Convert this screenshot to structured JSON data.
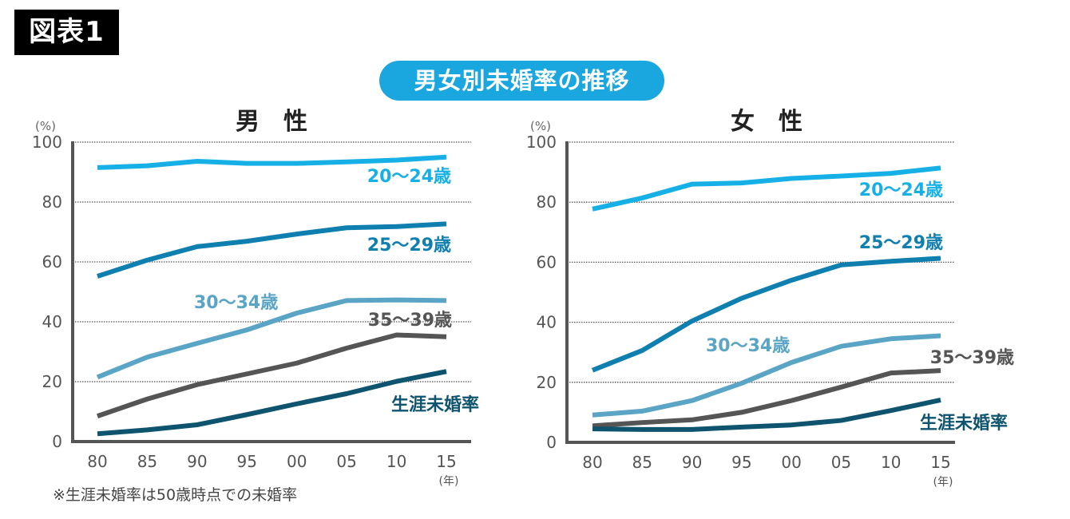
{
  "figure_label": "図表1",
  "main_title": "男女別未婚率の推移",
  "footnote": "※生涯未婚率は50歳時点での未婚率",
  "colors": {
    "20-24": "#17b0e6",
    "25-29": "#0f7fb0",
    "30-34": "#5aa5c5",
    "35-39": "#555555",
    "lifetime": "#0e546e",
    "axis": "#555555",
    "grid": "#555555",
    "title_bg": "#1aa7e0"
  },
  "chart_data": [
    {
      "type": "line",
      "title": "男　性",
      "ylabel": "(%)",
      "xlabel": "(年)",
      "ylim": [
        0,
        100
      ],
      "yticks": [
        "0",
        "20",
        "40",
        "60",
        "80",
        "100"
      ],
      "grid": true,
      "categories": [
        "80",
        "85",
        "90",
        "95",
        "00",
        "05",
        "10",
        "15"
      ],
      "series": [
        {
          "key": "20-24",
          "name": "20〜24歳",
          "values": [
            91.5,
            92.1,
            93.6,
            92.9,
            92.9,
            93.4,
            94.0,
            95.0
          ]
        },
        {
          "key": "25-29",
          "name": "25〜29歳",
          "values": [
            55.2,
            60.6,
            65.1,
            66.9,
            69.3,
            71.4,
            71.8,
            72.7
          ]
        },
        {
          "key": "30-34",
          "name": "30〜34歳",
          "values": [
            21.5,
            28.2,
            32.8,
            37.3,
            42.9,
            47.1,
            47.3,
            47.1
          ]
        },
        {
          "key": "35-39",
          "name": "35〜39歳",
          "values": [
            8.5,
            14.2,
            19.0,
            22.6,
            26.2,
            31.2,
            35.6,
            35.0
          ]
        },
        {
          "key": "lifetime",
          "name": "生涯未婚率",
          "values": [
            2.6,
            3.9,
            5.6,
            9.0,
            12.6,
            16.0,
            20.1,
            23.4
          ]
        }
      ]
    },
    {
      "type": "line",
      "title": "女　性",
      "ylabel": "(%)",
      "xlabel": "(年)",
      "ylim": [
        0,
        100
      ],
      "yticks": [
        "0",
        "20",
        "40",
        "60",
        "80",
        "100"
      ],
      "grid": true,
      "categories": [
        "80",
        "85",
        "90",
        "95",
        "00",
        "05",
        "10",
        "15"
      ],
      "series": [
        {
          "key": "20-24",
          "name": "20〜24歳",
          "values": [
            77.7,
            81.4,
            86.0,
            86.4,
            87.9,
            88.7,
            89.6,
            91.4
          ]
        },
        {
          "key": "25-29",
          "name": "25〜29歳",
          "values": [
            24.0,
            30.6,
            40.4,
            48.0,
            54.0,
            59.1,
            60.3,
            61.3
          ]
        },
        {
          "key": "30-34",
          "name": "30〜34歳",
          "values": [
            9.1,
            10.4,
            13.9,
            19.7,
            26.6,
            32.0,
            34.5,
            35.5
          ]
        },
        {
          "key": "35-39",
          "name": "35〜39歳",
          "values": [
            5.5,
            6.6,
            7.5,
            10.0,
            13.9,
            18.4,
            23.1,
            23.9
          ]
        },
        {
          "key": "lifetime",
          "name": "生涯未婚率",
          "values": [
            4.5,
            4.3,
            4.3,
            5.1,
            5.8,
            7.3,
            10.6,
            14.1
          ]
        }
      ]
    }
  ]
}
